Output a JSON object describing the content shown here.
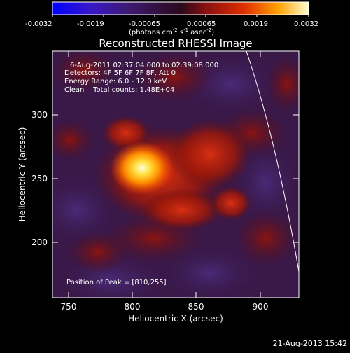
{
  "colorbar": {
    "ticks": [
      "-0.0032",
      "-0.0019",
      "-0.00065",
      "0.00065",
      "0.0019",
      "0.0032"
    ],
    "units_main": "(photons cm",
    "units_exp1": "-2",
    "units_mid": " s",
    "units_exp2": "-1",
    "units_end": " asec",
    "units_exp3": "-2",
    "units_close": ")"
  },
  "title": "Reconstructed RHESSI Image",
  "info": {
    "time_range": "6-Aug-2011 02:37:04.000 to 02:39:08.000",
    "detectors": "Detectors: 4F 5F 6F 7F 8F, Att 0",
    "energy": "Energy Range: 6.0 - 12.0 keV",
    "clean": "Clean    Total counts: 1.48E+04",
    "peak": "Position of Peak = [810,255]"
  },
  "axes": {
    "xlabel": "Heliocentric X (arcsec)",
    "ylabel": "Heliocentric Y (arcsec)",
    "xticks": [
      "750",
      "800",
      "850",
      "900"
    ],
    "yticks": [
      "200",
      "250",
      "300"
    ]
  },
  "footer": {
    "timestamp": "21-Aug-2013 15:42"
  }
}
